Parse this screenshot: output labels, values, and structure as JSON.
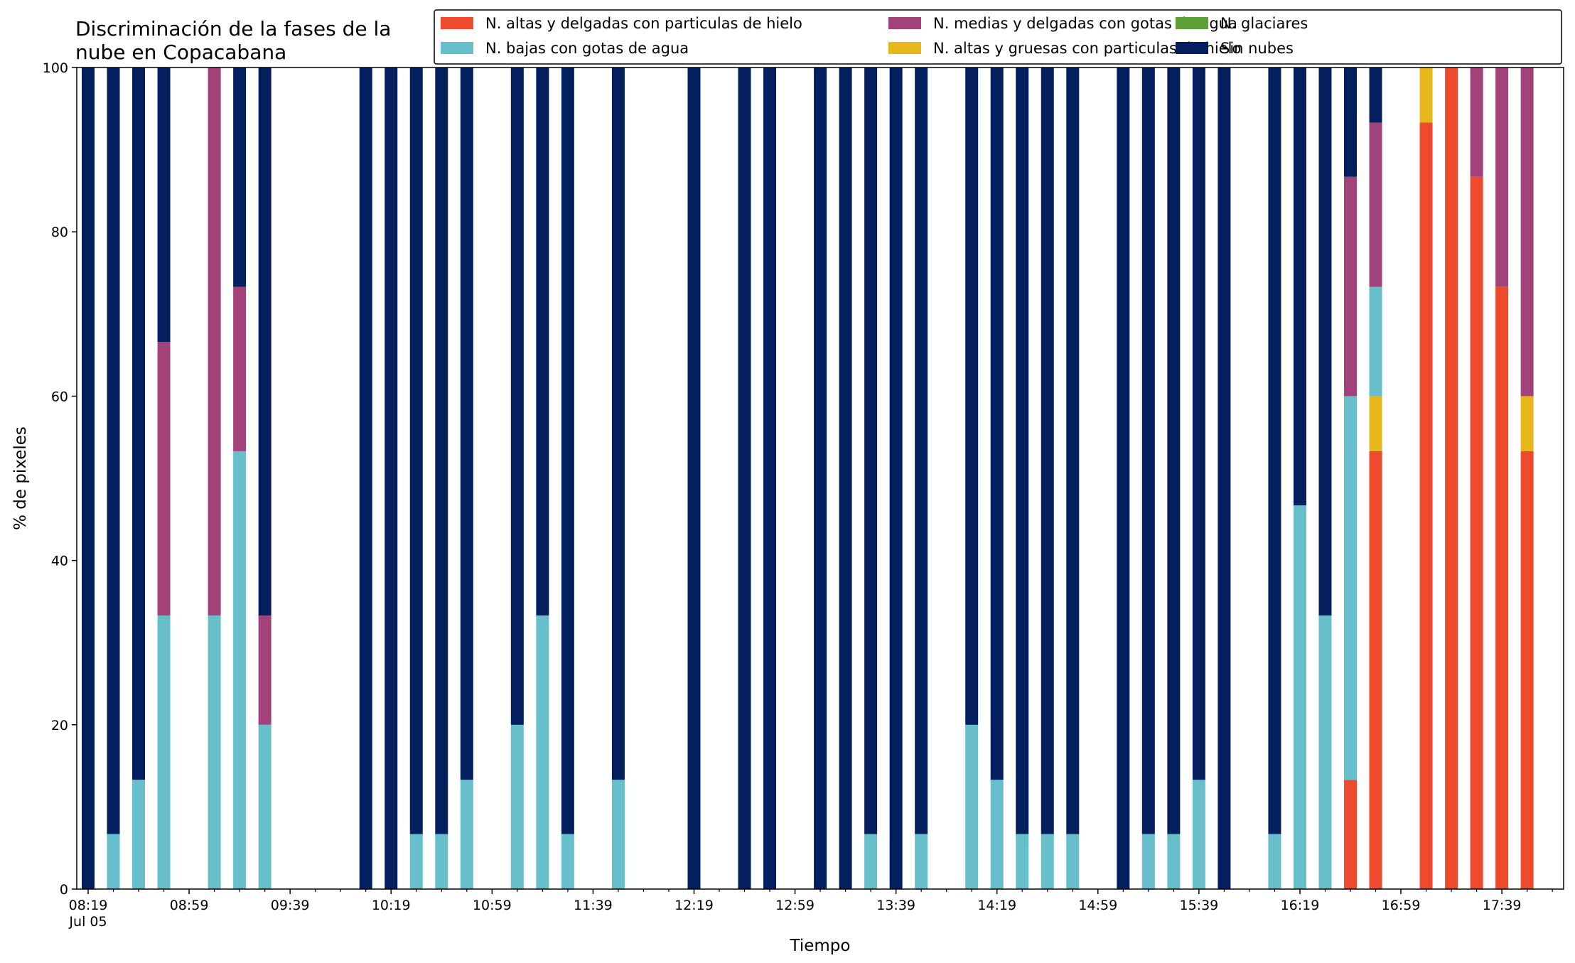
{
  "chart_data": {
    "type": "bar",
    "stacked": true,
    "title_lines": [
      "Discriminación de la fases de la",
      "nube en Copacabana"
    ],
    "xlabel": "Tiempo",
    "ylabel": "% de pixeles",
    "ylim": [
      0,
      100
    ],
    "yticks": [
      0,
      20,
      40,
      60,
      80,
      100
    ],
    "x_start": "08:19",
    "x_step_minutes": 10,
    "x_tick_labels": [
      "08:19",
      "08:59",
      "09:39",
      "10:19",
      "10:59",
      "11:39",
      "12:19",
      "12:59",
      "13:39",
      "14:19",
      "14:59",
      "15:39",
      "16:19",
      "16:59",
      "17:39"
    ],
    "x_tick_sublabel": "Jul 05",
    "grid": false,
    "legend_position": "top-right",
    "legend_columns": 3,
    "series": [
      {
        "name": "N. altas y delgadas con particulas de hielo",
        "color": "#ee4a2e"
      },
      {
        "name": "N. altas y gruesas con particulas de hielo",
        "color": "#e6b81c"
      },
      {
        "name": "N. glaciares",
        "color": "#5c9f35"
      },
      {
        "name": "N. bajas con gotas de agua",
        "color": "#68bfcc"
      },
      {
        "name": "N. medias y delgadas con gotas de agua",
        "color": "#a34279"
      },
      {
        "name": "Sin nubes",
        "color": "#041f5e"
      }
    ],
    "legend_order": [
      0,
      3,
      4,
      1,
      2,
      5
    ],
    "bars": [
      {
        "time": "08:19",
        "values": [
          0,
          0,
          0,
          0,
          0,
          100
        ]
      },
      {
        "time": "08:29",
        "values": [
          0,
          0,
          0,
          6.7,
          0,
          93.3
        ]
      },
      {
        "time": "08:39",
        "values": [
          0,
          0,
          0,
          13.3,
          0,
          86.7
        ]
      },
      {
        "time": "08:49",
        "values": [
          0,
          0,
          0,
          33.3,
          33.3,
          33.4
        ]
      },
      {
        "time": "09:09",
        "values": [
          0,
          0,
          0,
          33.3,
          66.7,
          0
        ]
      },
      {
        "time": "09:19",
        "values": [
          0,
          0,
          0,
          53.3,
          20,
          26.7
        ]
      },
      {
        "time": "09:29",
        "values": [
          0,
          0,
          0,
          20,
          13.3,
          66.7
        ]
      },
      {
        "time": "10:09",
        "values": [
          0,
          0,
          0,
          0,
          0,
          100
        ]
      },
      {
        "time": "10:19",
        "values": [
          0,
          0,
          0,
          0,
          0,
          100
        ]
      },
      {
        "time": "10:29",
        "values": [
          0,
          0,
          0,
          6.7,
          0,
          93.3
        ]
      },
      {
        "time": "10:39",
        "values": [
          0,
          0,
          0,
          6.7,
          0,
          93.3
        ]
      },
      {
        "time": "10:49",
        "values": [
          0,
          0,
          0,
          13.3,
          0,
          86.7
        ]
      },
      {
        "time": "11:09",
        "values": [
          0,
          0,
          0,
          20,
          0,
          80
        ]
      },
      {
        "time": "11:19",
        "values": [
          0,
          0,
          0,
          33.3,
          0,
          66.7
        ]
      },
      {
        "time": "11:29",
        "values": [
          0,
          0,
          0,
          6.7,
          0,
          93.3
        ]
      },
      {
        "time": "11:49",
        "values": [
          0,
          0,
          0,
          13.3,
          0,
          86.7
        ]
      },
      {
        "time": "12:19",
        "values": [
          0,
          0,
          0,
          0,
          0,
          100
        ]
      },
      {
        "time": "12:39",
        "values": [
          0,
          0,
          0,
          0,
          0,
          100
        ]
      },
      {
        "time": "12:49",
        "values": [
          0,
          0,
          0,
          0,
          0,
          100
        ]
      },
      {
        "time": "13:09",
        "values": [
          0,
          0,
          0,
          0,
          0,
          100
        ]
      },
      {
        "time": "13:19",
        "values": [
          0,
          0,
          0,
          0,
          0,
          100
        ]
      },
      {
        "time": "13:29",
        "values": [
          0,
          0,
          0,
          6.7,
          0,
          93.3
        ]
      },
      {
        "time": "13:39",
        "values": [
          0,
          0,
          0,
          0,
          0,
          100
        ]
      },
      {
        "time": "13:49",
        "values": [
          0,
          0,
          0,
          6.7,
          0,
          93.3
        ]
      },
      {
        "time": "14:09",
        "values": [
          0,
          0,
          0,
          20,
          0,
          80
        ]
      },
      {
        "time": "14:19",
        "values": [
          0,
          0,
          0,
          13.3,
          0,
          86.7
        ]
      },
      {
        "time": "14:29",
        "values": [
          0,
          0,
          0,
          6.7,
          0,
          93.3
        ]
      },
      {
        "time": "14:39",
        "values": [
          0,
          0,
          0,
          6.7,
          0,
          93.3
        ]
      },
      {
        "time": "14:49",
        "values": [
          0,
          0,
          0,
          6.7,
          0,
          93.3
        ]
      },
      {
        "time": "15:09",
        "values": [
          0,
          0,
          0,
          0,
          0,
          100
        ]
      },
      {
        "time": "15:19",
        "values": [
          0,
          0,
          0,
          6.7,
          0,
          93.3
        ]
      },
      {
        "time": "15:29",
        "values": [
          0,
          0,
          0,
          6.7,
          0,
          93.3
        ]
      },
      {
        "time": "15:39",
        "values": [
          0,
          0,
          0,
          13.3,
          0,
          86.7
        ]
      },
      {
        "time": "15:49",
        "values": [
          0,
          0,
          0,
          0,
          0,
          100
        ]
      },
      {
        "time": "16:09",
        "values": [
          0,
          0,
          0,
          6.7,
          0,
          93.3
        ]
      },
      {
        "time": "16:19",
        "values": [
          0,
          0,
          0,
          46.7,
          0,
          53.3
        ]
      },
      {
        "time": "16:29",
        "values": [
          0,
          0,
          0,
          33.3,
          0,
          66.7
        ]
      },
      {
        "time": "16:39",
        "values": [
          13.3,
          0,
          0,
          46.7,
          26.7,
          13.3
        ]
      },
      {
        "time": "16:49",
        "values": [
          53.3,
          6.7,
          0,
          13.3,
          20,
          6.7
        ]
      },
      {
        "time": "17:09",
        "values": [
          93.3,
          6.7,
          0,
          0,
          0,
          0
        ]
      },
      {
        "time": "17:19",
        "values": [
          100,
          0,
          0,
          0,
          0,
          0
        ]
      },
      {
        "time": "17:29",
        "values": [
          86.7,
          0,
          0,
          0,
          13.3,
          0
        ]
      },
      {
        "time": "17:39",
        "values": [
          73.3,
          0,
          0,
          0,
          26.7,
          0
        ]
      },
      {
        "time": "17:49",
        "values": [
          53.3,
          6.7,
          0,
          0,
          40,
          0
        ]
      }
    ]
  }
}
